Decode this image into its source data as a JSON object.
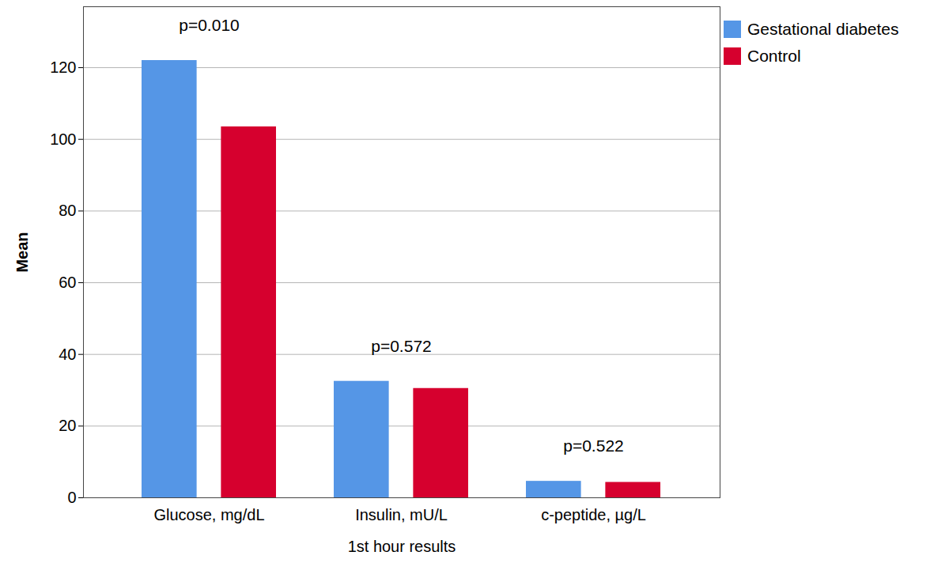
{
  "chart_data": {
    "type": "bar",
    "x_label": "1st hour results",
    "y_label": "Mean",
    "categories": [
      "Glucose, mg/dL",
      "Insulin, mU/L",
      "c-peptide, µg/L"
    ],
    "series": [
      {
        "name": "Gestational diabetes",
        "color": "#5596e6",
        "values": [
          122,
          32.5,
          4.6
        ]
      },
      {
        "name": "Control",
        "color": "#d6002e",
        "values": [
          103.5,
          30.5,
          4.3
        ]
      }
    ],
    "ylim": [
      0,
      137
    ],
    "yticks": [
      0,
      20,
      40,
      60,
      80,
      100,
      120
    ],
    "grid": true,
    "legend": "top-right",
    "annotations": [
      {
        "category": "Glucose, mg/dL",
        "text": "p=0.010"
      },
      {
        "category": "Insulin, mU/L",
        "text": "p=0.572"
      },
      {
        "category": "c-peptide, µg/L",
        "text": "p=0.522"
      }
    ]
  }
}
